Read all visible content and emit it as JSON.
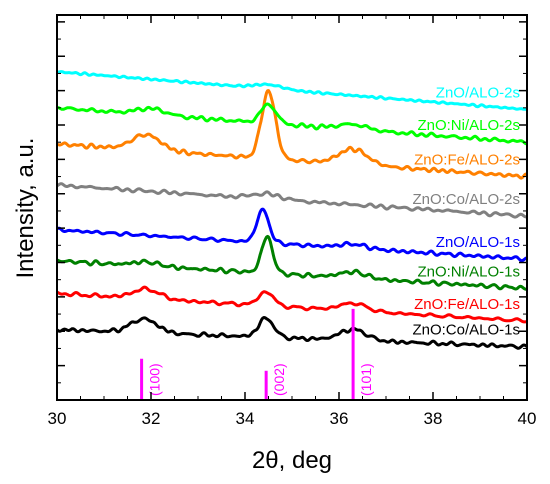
{
  "chart_data": {
    "type": "line",
    "title": "",
    "xlabel": "2θ, deg",
    "ylabel": "Intensity, a.u.",
    "xlim": [
      30,
      40
    ],
    "x_ticks": [
      "30",
      "32",
      "34",
      "36",
      "38",
      "40"
    ],
    "ylim": [
      0,
      11.2
    ],
    "y_ticks_labeled": false,
    "grid": false,
    "legend": "labels beside curves",
    "series": [
      {
        "name": "ZnO:Co/ALO-1s",
        "color": "#000000",
        "baseline": [
          2.05,
          1.55
        ],
        "peaks": [
          [
            31.85,
            0.4,
            0.28
          ],
          [
            34.45,
            0.55,
            0.16
          ],
          [
            36.3,
            0.32,
            0.28
          ]
        ],
        "noise": 0.05
      },
      {
        "name": "ZnO:Fe/ALO-1s",
        "color": "#ff0000",
        "baseline": [
          3.1,
          2.3
        ],
        "peaks": [
          [
            31.9,
            0.28,
            0.28
          ],
          [
            34.45,
            0.4,
            0.16
          ],
          [
            36.3,
            0.22,
            0.28
          ]
        ],
        "noise": 0.06
      },
      {
        "name": "ZnO:Ni/ALO-1s",
        "color": "#008000",
        "baseline": [
          4.05,
          3.25
        ],
        "peaks": [
          [
            31.9,
            0.12,
            0.28
          ],
          [
            34.47,
            1.05,
            0.12
          ],
          [
            36.3,
            0.18,
            0.28
          ]
        ],
        "noise": 0.06
      },
      {
        "name": "ZnO/ALO-1s",
        "color": "#0000ff",
        "baseline": [
          4.95,
          4.1
        ],
        "peaks": [
          [
            34.38,
            0.95,
            0.13
          ],
          [
            36.3,
            0.12,
            0.28
          ]
        ],
        "noise": 0.05
      },
      {
        "name": "ZnO:Co/ALO-2s",
        "color": "#808080",
        "baseline": [
          6.25,
          5.35
        ],
        "peaks": [
          [
            34.45,
            0.15,
            0.3
          ]
        ],
        "noise": 0.05
      },
      {
        "name": "ZnO:Fe/ALO-2s",
        "color": "#ff8000",
        "baseline": [
          7.45,
          6.5
        ],
        "peaks": [
          [
            31.9,
            0.45,
            0.3
          ],
          [
            34.5,
            1.95,
            0.15
          ],
          [
            36.3,
            0.45,
            0.3
          ]
        ],
        "noise": 0.05
      },
      {
        "name": "ZnO:Ni/ALO-2s",
        "color": "#00ff00",
        "baseline": [
          8.5,
          7.5
        ],
        "peaks": [
          [
            32.0,
            0.18,
            0.3
          ],
          [
            34.5,
            0.55,
            0.16
          ],
          [
            36.3,
            0.15,
            0.3
          ]
        ],
        "noise": 0.06
      },
      {
        "name": "ZnO/ALO-2s",
        "color": "#00ffff",
        "baseline": [
          9.55,
          8.45
        ],
        "peaks": [
          [
            34.5,
            0.12,
            0.3
          ]
        ],
        "noise": 0.04
      }
    ],
    "reference_lines": [
      {
        "label": "(100)",
        "x": 31.8,
        "height": 1.2
      },
      {
        "label": "(002)",
        "x": 34.45,
        "height": 0.85
      },
      {
        "label": "(101)",
        "x": 36.3,
        "height": 2.65
      }
    ],
    "reference_color": "#ff00ff"
  }
}
